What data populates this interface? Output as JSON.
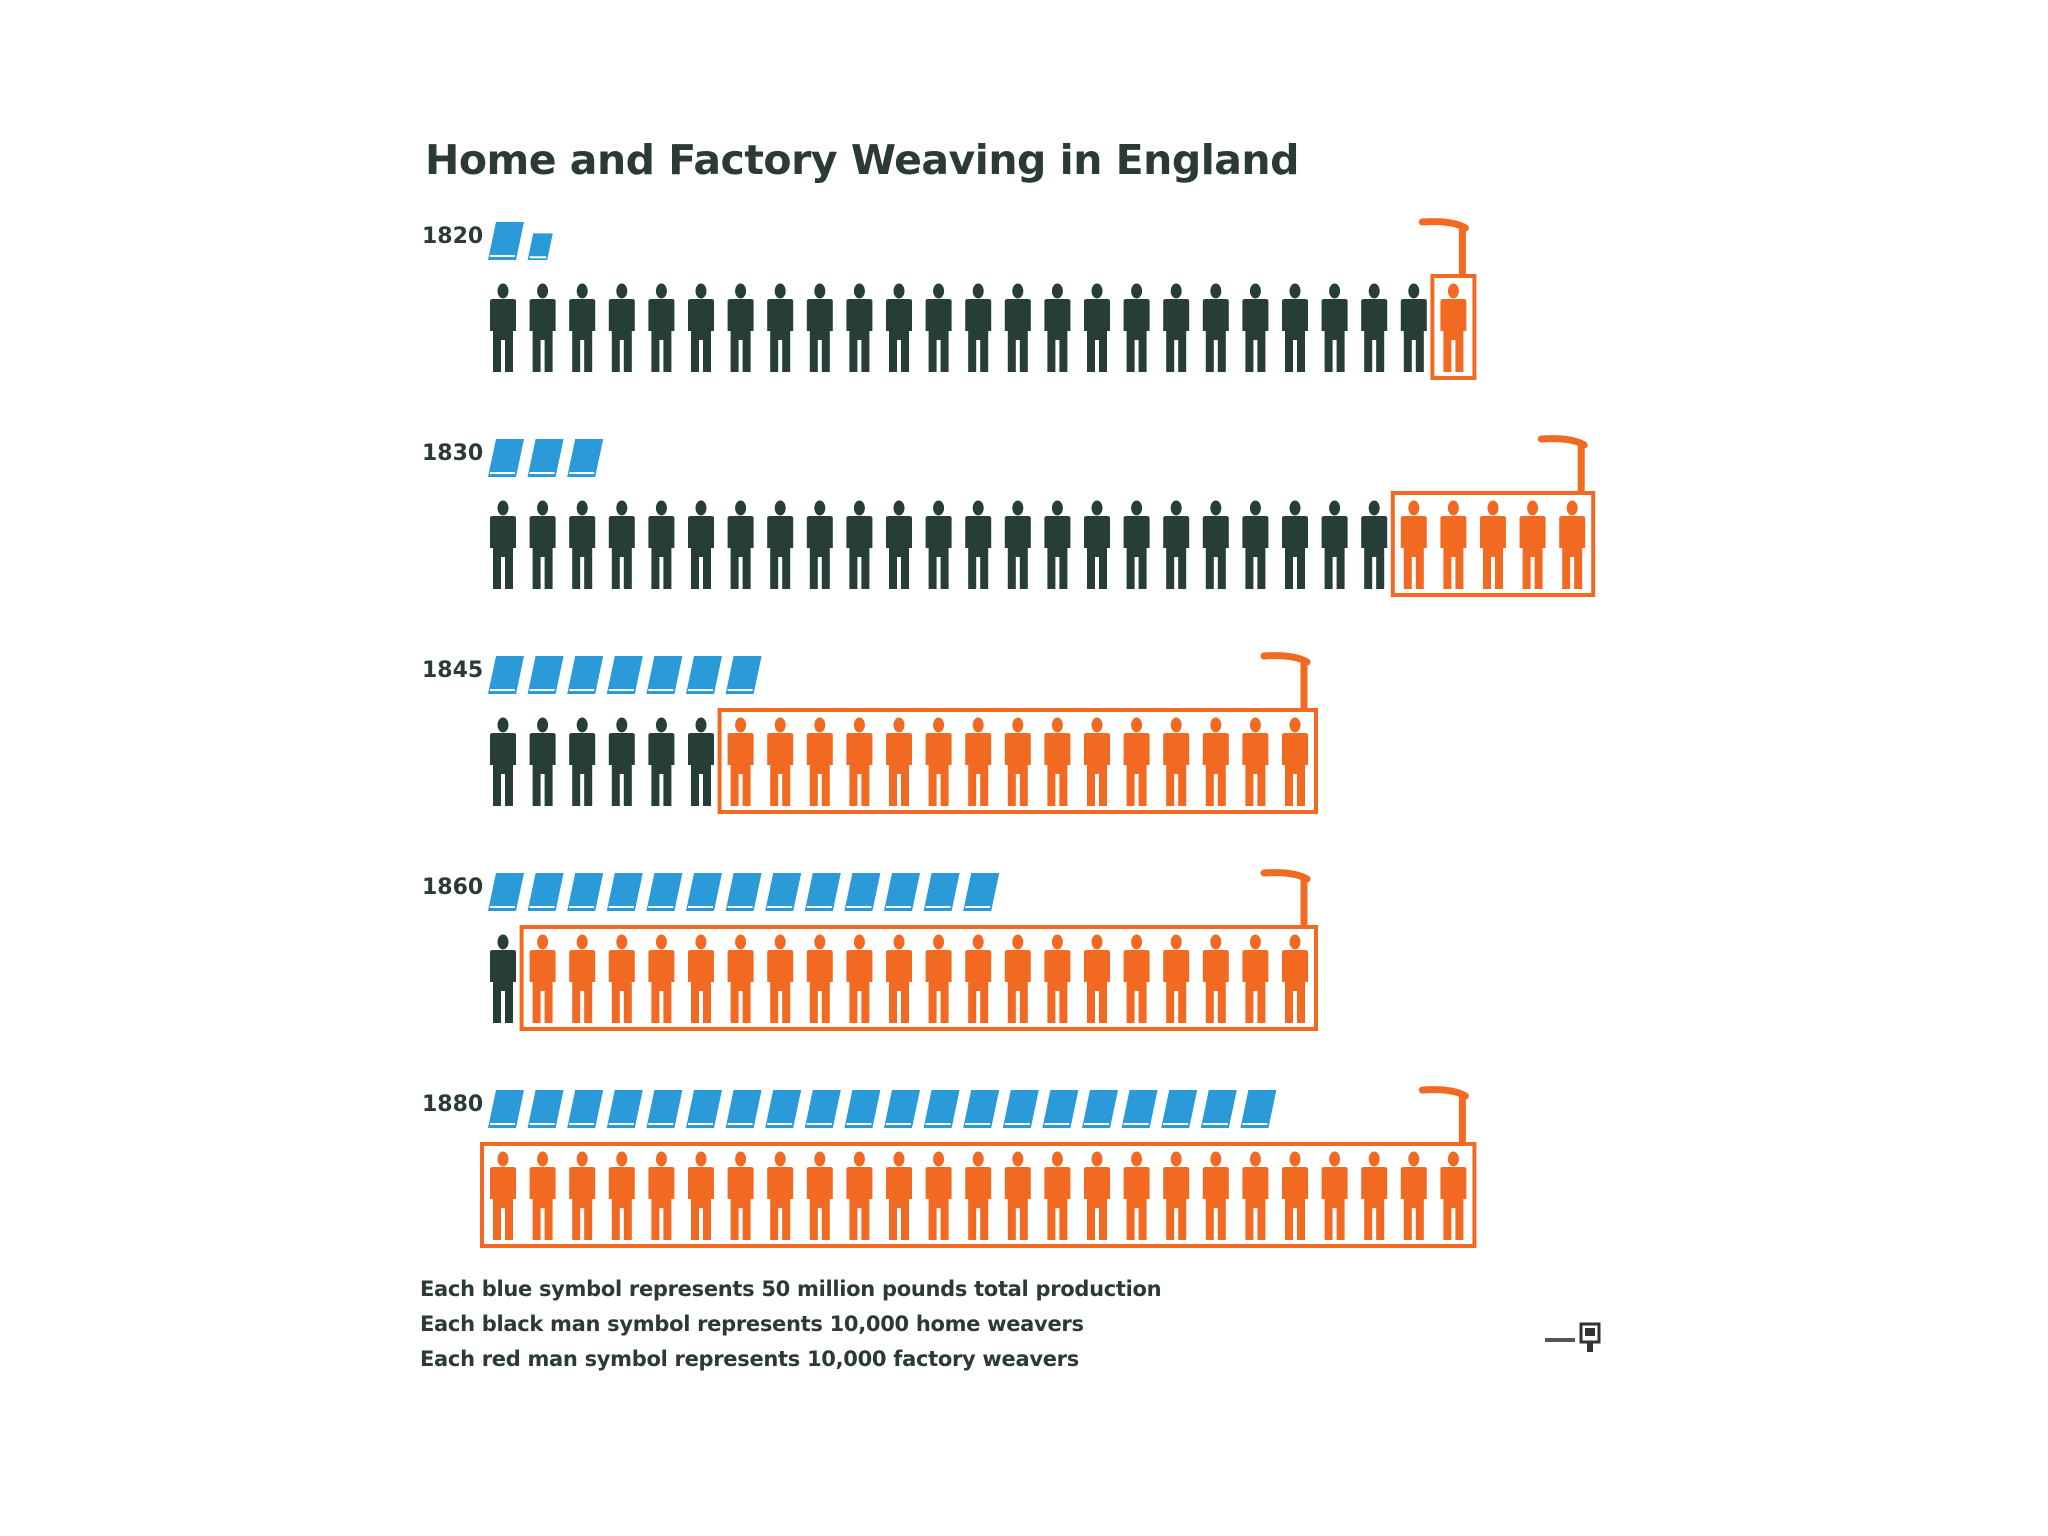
{
  "chart_data": {
    "type": "table",
    "title": "Home and Factory Weaving in England",
    "colors": {
      "production": "#2a9ad9",
      "home_weavers": "#263d38",
      "factory_weavers": "#f26a22",
      "title_text": "#2b3a37"
    },
    "units": {
      "production_symbol": 50000000,
      "home_weaver_symbol": 10000,
      "factory_weaver_symbol": 10000
    },
    "rows": [
      {
        "year": "1820",
        "production_symbols": 1.5,
        "home_weavers": 24,
        "factory_weavers": 1
      },
      {
        "year": "1830",
        "production_symbols": 3,
        "home_weavers": 23,
        "factory_weavers": 5
      },
      {
        "year": "1845",
        "production_symbols": 7,
        "home_weavers": 6,
        "factory_weavers": 15
      },
      {
        "year": "1860",
        "production_symbols": 13,
        "home_weavers": 1,
        "factory_weavers": 20
      },
      {
        "year": "1880",
        "production_symbols": 20,
        "home_weavers": 0,
        "factory_weavers": 25
      }
    ],
    "legend": [
      "Each blue symbol represents 50 million pounds total production",
      "Each black man symbol represents 10,000 home weavers",
      "Each red man symbol represents 10,000 factory weavers"
    ]
  },
  "credit_icon": "isotype-mark-icon"
}
